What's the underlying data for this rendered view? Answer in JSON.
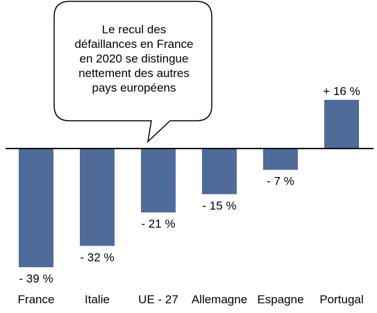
{
  "chart_data": {
    "type": "bar",
    "categories": [
      "France",
      "Italie",
      "UE - 27",
      "Allemagne",
      "Espagne",
      "Portugal"
    ],
    "values": [
      -39,
      -32,
      -21,
      -15,
      -7,
      16
    ],
    "value_labels": [
      "- 39 %",
      "- 32 %",
      "- 21 %",
      "- 15 %",
      "- 7 %",
      "+ 16 %"
    ],
    "bar_color": "#4F6B9A",
    "grid": false,
    "annotation": {
      "lines": [
        "Le recul des",
        "défaillances en France",
        "en 2020 se distingue",
        "nettement des autres",
        "pays européens"
      ]
    }
  }
}
